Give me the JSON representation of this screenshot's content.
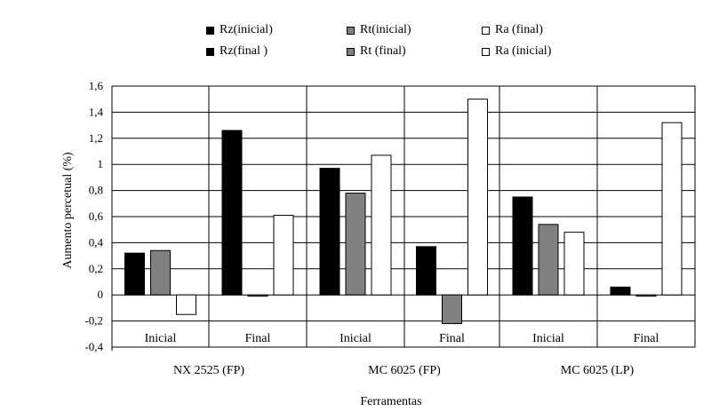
{
  "chart_data": {
    "type": "bar",
    "title": "",
    "xlabel": "Ferramentas",
    "ylabel": "Aumento percetual (%)",
    "ylim": [
      -0.4,
      1.6
    ],
    "yticks": [
      1.6,
      1.4,
      1.2,
      1,
      0.8,
      0.6,
      0.4,
      0.2,
      0,
      -0.2,
      -0.4
    ],
    "ytick_labels": [
      "1,6",
      "1,4",
      "1,2",
      "1",
      "0,8",
      "0,6",
      "0,4",
      "0,2",
      "0",
      "-0,2",
      "-0,4"
    ],
    "grid": true,
    "tools": [
      "NX 2525 (FP)",
      "MC 6025 (FP)",
      "MC 6025 (LP)"
    ],
    "categories": [
      "Inicial",
      "Final",
      "Inicial",
      "Final",
      "Inicial",
      "Final"
    ],
    "series": [
      {
        "name": "Rz(inicial)",
        "color": "#000000"
      },
      {
        "name": "Rt(inicial)",
        "color": "#808080"
      },
      {
        "name": "Ra (final)",
        "color": "#ffffff"
      },
      {
        "name": "Rz(final )",
        "color": "#000000"
      },
      {
        "name": "Rt (final)",
        "color": "#808080"
      },
      {
        "name": "Ra (inicial)",
        "color": "#ffffff"
      }
    ],
    "groups": [
      {
        "category": "Inicial",
        "tool": "NX 2525 (FP)",
        "values": [
          0.32,
          0.34,
          -0.15
        ],
        "series_names": [
          "Rz(inicial)",
          "Rt(inicial)",
          "Ra (final)"
        ]
      },
      {
        "category": "Final",
        "tool": "NX 2525 (FP)",
        "values": [
          1.26,
          -0.01,
          0.61
        ],
        "series_names": [
          "Rz(final )",
          "Rt (final)",
          "Ra (inicial)"
        ]
      },
      {
        "category": "Inicial",
        "tool": "MC 6025 (FP)",
        "values": [
          0.97,
          0.78,
          1.07
        ],
        "series_names": [
          "Rz(inicial)",
          "Rt(inicial)",
          "Ra (final)"
        ]
      },
      {
        "category": "Final",
        "tool": "MC 6025 (FP)",
        "values": [
          0.37,
          -0.22,
          1.5
        ],
        "series_names": [
          "Rz(final )",
          "Rt (final)",
          "Ra (inicial)"
        ]
      },
      {
        "category": "Inicial",
        "tool": "MC 6025 (LP)",
        "values": [
          0.75,
          0.54,
          0.48
        ],
        "series_names": [
          "Rz(inicial)",
          "Rt(inicial)",
          "Ra (final)"
        ]
      },
      {
        "category": "Final",
        "tool": "MC 6025 (LP)",
        "values": [
          0.06,
          -0.01,
          1.32
        ],
        "series_names": [
          "Rz(final )",
          "Rt (final)",
          "Ra (inicial)"
        ]
      }
    ],
    "legend_position": "top"
  }
}
